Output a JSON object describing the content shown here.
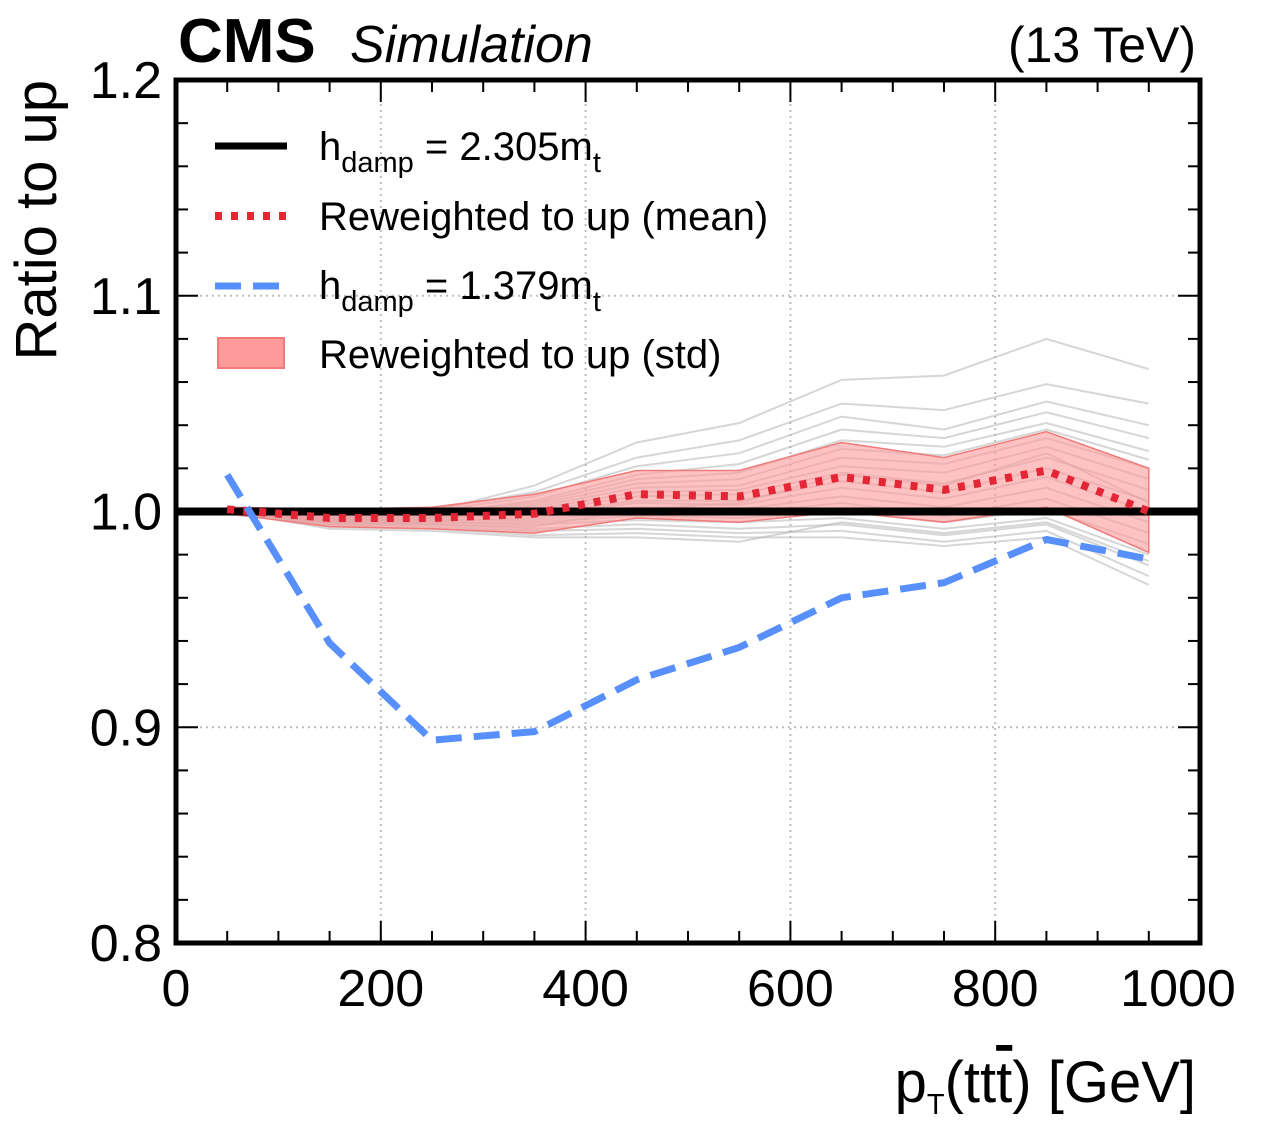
{
  "header": {
    "experiment": "CMS",
    "status": "Simulation",
    "energy": "(13 TeV)"
  },
  "chart_data": {
    "type": "line",
    "xlabel": {
      "main": "p",
      "sub": "T",
      "rest": "(tt",
      "bar": "t",
      "close": ") [GeV]"
    },
    "ylabel": "Ratio to up",
    "xlim": [
      0,
      1000
    ],
    "ylim": [
      0.8,
      1.2
    ],
    "grid": true,
    "legend_position": "top-left",
    "x_ticks": [
      0,
      200,
      400,
      600,
      800,
      1000
    ],
    "x_tick_labels": [
      "0",
      "200",
      "400",
      "600",
      "800",
      "1000"
    ],
    "y_ticks": [
      0.8,
      0.9,
      1.0,
      1.1,
      1.2
    ],
    "y_tick_labels": [
      "0.8",
      "0.9",
      "1.0",
      "1.1",
      "1.2"
    ],
    "x": [
      50,
      150,
      250,
      350,
      450,
      550,
      650,
      750,
      850,
      950
    ],
    "series": [
      {
        "name": "hdamp_nominal",
        "label": {
          "main": "h",
          "sub": "damp",
          "mid": " = 2.305m",
          "sub2": "t"
        },
        "color": "#000000",
        "style": "solid",
        "values": [
          1.0,
          1.0,
          1.0,
          1.0,
          1.0,
          1.0,
          1.0,
          1.0,
          1.0,
          1.0
        ]
      },
      {
        "name": "reweighted_mean",
        "label": {
          "main": "Reweighted to up (mean)"
        },
        "color": "#e42536",
        "style": "dotted",
        "values": [
          1.001,
          0.997,
          0.997,
          0.999,
          1.008,
          1.007,
          1.016,
          1.01,
          1.019,
          1.0
        ]
      },
      {
        "name": "hdamp_up",
        "label": {
          "main": "h",
          "sub": "damp",
          "mid": " = 1.379m",
          "sub2": "t"
        },
        "color": "#5790fc",
        "style": "dashed",
        "values": [
          1.017,
          0.939,
          0.894,
          0.898,
          0.922,
          0.937,
          0.96,
          0.967,
          0.987,
          0.978
        ]
      }
    ],
    "band": {
      "name": "reweighted_std",
      "label": "Reweighted to up (std)",
      "color": "#ff9a9a",
      "lower": [
        0.999,
        0.993,
        0.992,
        0.99,
        0.997,
        0.995,
        1.0,
        0.995,
        1.002,
        0.981
      ],
      "upper": [
        1.002,
        1.001,
        1.002,
        1.008,
        1.019,
        1.019,
        1.032,
        1.025,
        1.037,
        1.02
      ]
    },
    "replicas": {
      "name": "individual_replicas",
      "color": "#b4b4b4",
      "lines": [
        [
          1.0,
          1.0,
          1.0,
          1.012,
          1.032,
          1.041,
          1.061,
          1.063,
          1.08,
          1.066
        ],
        [
          1.0,
          1.0,
          1.001,
          1.009,
          1.025,
          1.033,
          1.05,
          1.047,
          1.059,
          1.05
        ],
        [
          1.0,
          0.999,
          1.0,
          1.007,
          1.021,
          1.027,
          1.044,
          1.038,
          1.051,
          1.04
        ],
        [
          1.0,
          0.999,
          0.999,
          1.005,
          1.017,
          1.022,
          1.038,
          1.034,
          1.046,
          1.034
        ],
        [
          1.0,
          0.998,
          0.999,
          1.004,
          1.015,
          1.018,
          1.033,
          1.03,
          1.041,
          1.028
        ],
        [
          1.0,
          0.998,
          0.998,
          1.003,
          1.013,
          1.015,
          1.029,
          1.026,
          1.038,
          1.024
        ],
        [
          1.0,
          0.998,
          0.998,
          1.002,
          1.011,
          1.012,
          1.025,
          1.022,
          1.034,
          1.02
        ],
        [
          1.0,
          0.997,
          0.998,
          1.001,
          1.009,
          1.01,
          1.021,
          1.018,
          1.03,
          1.015
        ],
        [
          1.0,
          0.997,
          0.997,
          1.0,
          1.007,
          1.008,
          1.018,
          1.013,
          1.025,
          1.01
        ],
        [
          1.0,
          0.997,
          0.997,
          0.999,
          1.005,
          1.005,
          1.014,
          1.009,
          1.02,
          1.005
        ],
        [
          1.0,
          0.996,
          0.997,
          0.998,
          1.004,
          1.003,
          1.011,
          1.006,
          1.016,
          1.0
        ],
        [
          1.0,
          0.996,
          0.996,
          0.997,
          1.002,
          1.001,
          1.007,
          1.002,
          1.011,
          0.995
        ],
        [
          1.0,
          0.996,
          0.996,
          0.996,
          1.0,
          0.999,
          1.004,
          0.998,
          1.006,
          0.99
        ],
        [
          1.0,
          0.995,
          0.995,
          0.995,
          0.998,
          0.997,
          1.0,
          0.995,
          1.001,
          0.985
        ],
        [
          1.0,
          0.995,
          0.995,
          0.994,
          0.996,
          0.995,
          0.997,
          0.992,
          0.997,
          0.98
        ],
        [
          1.0,
          0.994,
          0.994,
          0.992,
          0.994,
          0.992,
          0.994,
          0.989,
          0.994,
          0.975
        ],
        [
          1.0,
          0.994,
          0.993,
          0.991,
          0.992,
          0.99,
          0.991,
          0.986,
          0.991,
          0.97
        ],
        [
          1.0,
          0.993,
          0.992,
          0.989,
          0.99,
          0.988,
          0.988,
          0.984,
          0.988,
          0.966
        ],
        [
          1.0,
          0.992,
          0.991,
          0.988,
          0.988,
          0.986,
          0.995,
          0.99,
          0.995,
          0.977
        ],
        [
          1.0,
          0.995,
          0.994,
          0.993,
          1.001,
          1.004,
          1.017,
          1.012,
          1.027,
          1.004
        ]
      ]
    }
  }
}
